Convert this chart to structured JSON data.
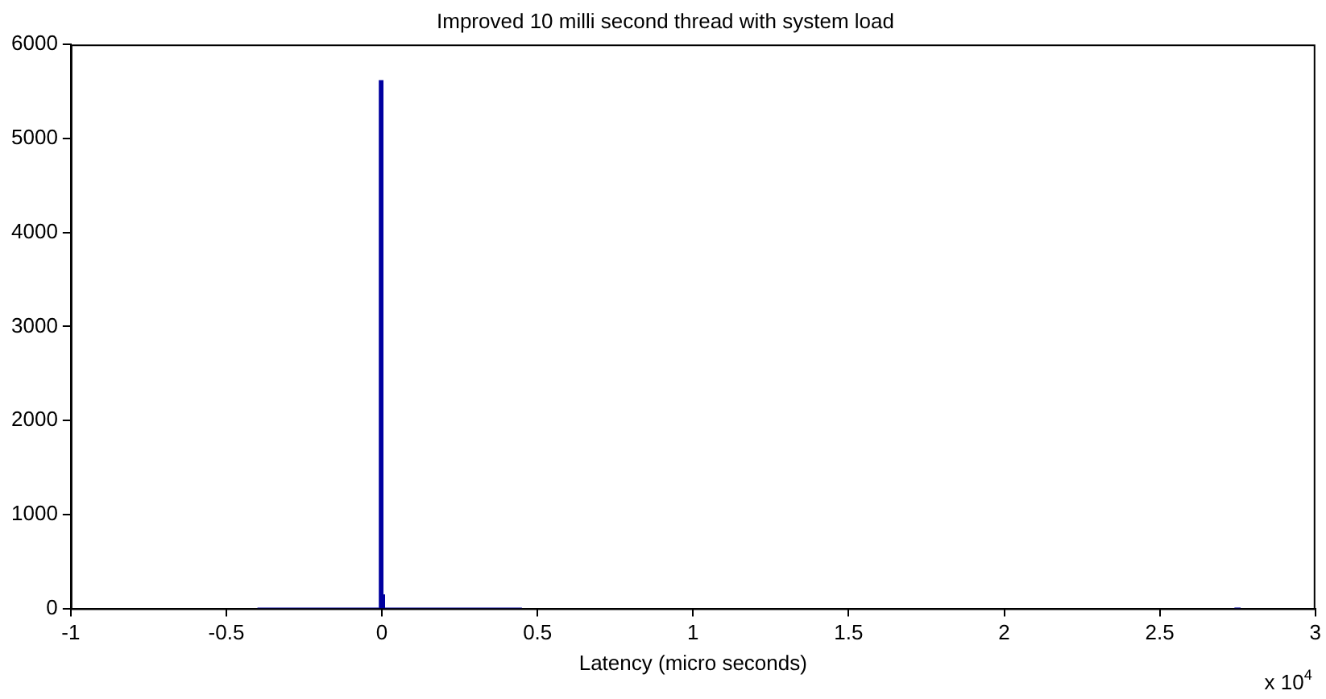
{
  "chart_data": {
    "type": "histogram",
    "title": "Improved 10 milli second thread with system load",
    "xlabel": "Latency (micro seconds)",
    "annotations": [
      "x 10$^{4}$"
    ],
    "bins": [
      -0.4,
      -0.01,
      0.005,
      0.01,
      0.45,
      2.74,
      2.76
    ],
    "values": [
      10,
      5620,
      150,
      10,
      0,
      10
    ],
    "color": "#0000a0",
    "xlim": [
      -1,
      3
    ],
    "xticks": [
      -1,
      -0.5,
      0,
      0.5,
      1,
      1.5,
      2,
      2.5,
      3
    ],
    "ylim": [
      0,
      6000
    ],
    "yticks": [
      0,
      1000,
      2000,
      3000,
      4000,
      5000,
      6000
    ],
    "grid": false,
    "legend": false
  }
}
